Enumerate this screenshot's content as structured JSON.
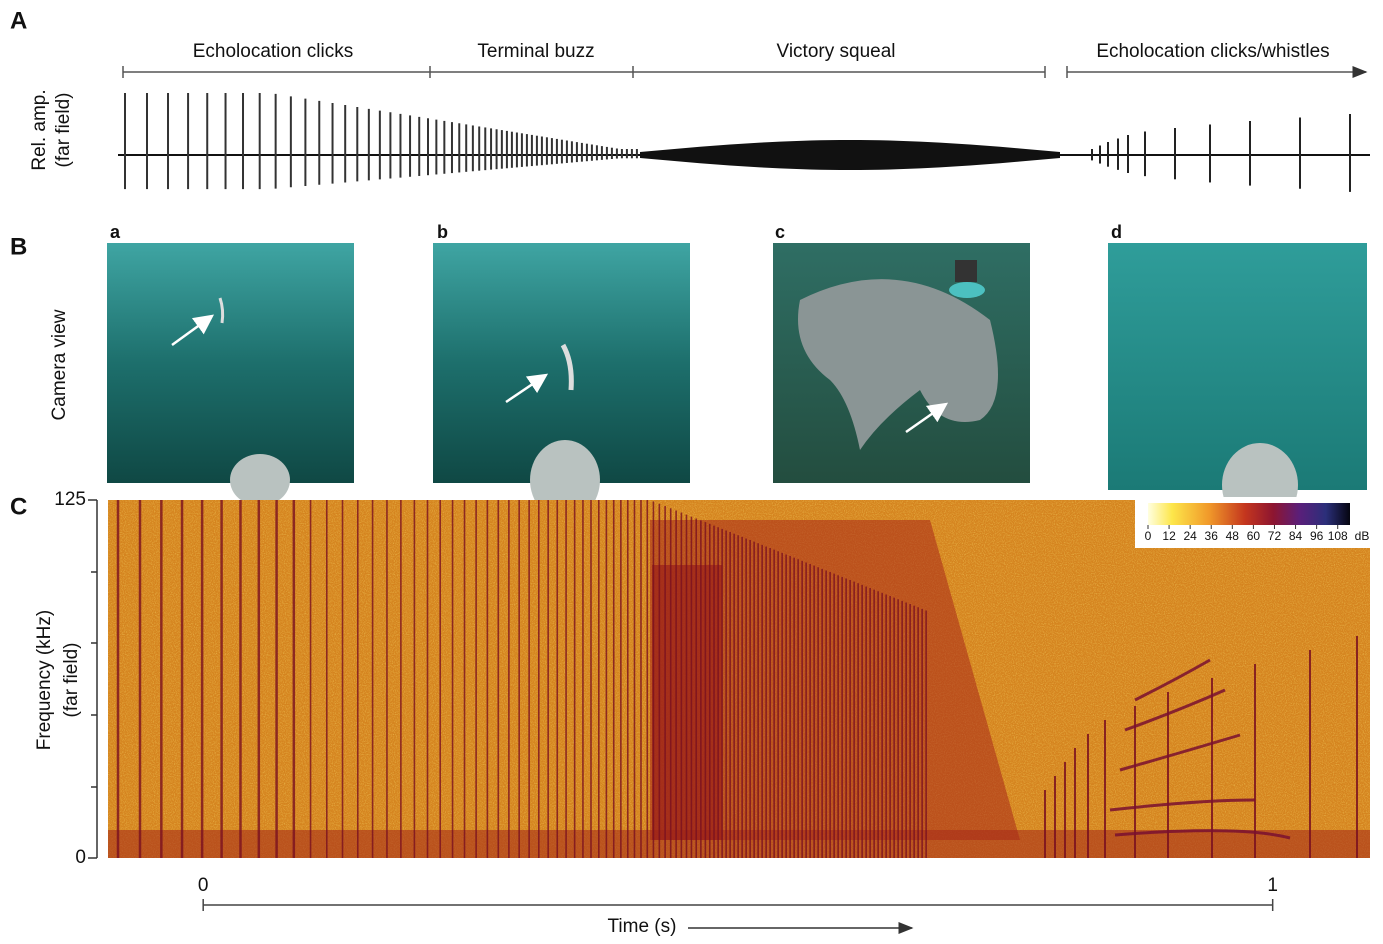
{
  "panel_a": {
    "label": "A",
    "ylabel": [
      "Rel. amp.",
      "(far field)"
    ],
    "segments": [
      "Echolocation clicks",
      "Terminal buzz",
      "Victory squeal",
      "Echolocation clicks/whistles"
    ]
  },
  "panel_b": {
    "label": "B",
    "ylabel": "Camera view",
    "images": [
      "a",
      "b",
      "c",
      "d"
    ]
  },
  "panel_c": {
    "label": "C",
    "ylabel": [
      "Frequency (kHz)",
      "(far field)"
    ],
    "ylim": [
      0,
      125
    ],
    "yticks": [
      0,
      125
    ],
    "xlim": [
      -0.089,
      1.091
    ],
    "xticks": [
      0,
      1
    ],
    "xlabel": "Time (s)",
    "colorbar": {
      "clim": [
        0,
        115
      ],
      "ticks": [
        0,
        12,
        24,
        36,
        48,
        60,
        72,
        84,
        96,
        108
      ],
      "unit": "dB"
    }
  }
}
